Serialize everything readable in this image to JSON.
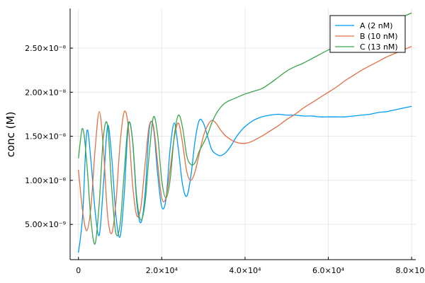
{
  "chart_data": {
    "type": "line",
    "title": "",
    "xlabel": "",
    "ylabel": "conc (M)",
    "xlim": [
      -2000,
      81000
    ],
    "ylim": [
      1e-09,
      2.95e-08
    ],
    "grid": true,
    "legend_position": "top-right",
    "x_ticks": [
      {
        "value": 0,
        "label": "0"
      },
      {
        "value": 20000,
        "label": "2.0×10⁴"
      },
      {
        "value": 40000,
        "label": "4.0×10⁴"
      },
      {
        "value": 60000,
        "label": "6.0×10⁴"
      },
      {
        "value": 80000,
        "label": "8.0×10⁴"
      }
    ],
    "y_ticks": [
      {
        "value": 5e-09,
        "label": "5.00×10⁻⁹"
      },
      {
        "value": 1e-08,
        "label": "1.00×10⁻⁸"
      },
      {
        "value": 1.5e-08,
        "label": "1.50×10⁻⁸"
      },
      {
        "value": 2e-08,
        "label": "2.00×10⁻⁸"
      },
      {
        "value": 2.5e-08,
        "label": "2.50×10⁻⁸"
      }
    ],
    "series": [
      {
        "name": "A (2 nM)",
        "color": "#009af9",
        "x": [
          0,
          1000,
          2000,
          3000,
          4000,
          5000,
          6000,
          7000,
          8000,
          9000,
          10000,
          11000,
          12000,
          13000,
          14000,
          15000,
          16000,
          17000,
          18000,
          19000,
          20000,
          21000,
          22000,
          23000,
          24000,
          25000,
          26000,
          27000,
          28000,
          29000,
          30000,
          31000,
          32000,
          33000,
          34000,
          35000,
          36000,
          37000,
          38000,
          39000,
          40000,
          42000,
          44000,
          46000,
          48000,
          50000,
          52000,
          54000,
          56000,
          58000,
          60000,
          62000,
          64000,
          66000,
          68000,
          70000,
          72000,
          74000,
          76000,
          78000,
          80000
        ],
        "y": [
          1.8e-09,
          6e-09,
          1.55e-08,
          1.22e-08,
          6.5e-09,
          3.8e-09,
          9.5e-09,
          1.62e-08,
          1.25e-08,
          6e-09,
          3.6e-09,
          8.5e-09,
          1.63e-08,
          1.45e-08,
          7.5e-09,
          5.2e-09,
          8.5e-09,
          1.58e-08,
          1.6e-08,
          1.08e-08,
          7e-09,
          7.8e-09,
          1.35e-08,
          1.65e-08,
          1.35e-08,
          9.5e-09,
          8.2e-09,
          1.05e-08,
          1.45e-08,
          1.68e-08,
          1.65e-08,
          1.5e-08,
          1.35e-08,
          1.3e-08,
          1.28e-08,
          1.3e-08,
          1.35e-08,
          1.42e-08,
          1.5e-08,
          1.56e-08,
          1.61e-08,
          1.68e-08,
          1.72e-08,
          1.74e-08,
          1.75e-08,
          1.74e-08,
          1.74e-08,
          1.73e-08,
          1.73e-08,
          1.72e-08,
          1.72e-08,
          1.72e-08,
          1.72e-08,
          1.73e-08,
          1.74e-08,
          1.75e-08,
          1.77e-08,
          1.78e-08,
          1.8e-08,
          1.82e-08,
          1.84e-08
        ]
      },
      {
        "name": "B (10 nM)",
        "color": "#e26f46",
        "x": [
          0,
          1000,
          2000,
          3000,
          4000,
          5000,
          6000,
          7000,
          8000,
          9000,
          10000,
          11000,
          12000,
          13000,
          14000,
          15000,
          16000,
          17000,
          18000,
          19000,
          20000,
          21000,
          22000,
          23000,
          24000,
          25000,
          26000,
          27000,
          28000,
          29000,
          30000,
          31000,
          32000,
          33000,
          34000,
          35000,
          36000,
          37000,
          38000,
          39000,
          40000,
          41000,
          42000,
          44000,
          46000,
          48000,
          50000,
          52000,
          54000,
          56000,
          58000,
          60000,
          62000,
          64000,
          66000,
          68000,
          70000,
          72000,
          74000,
          76000,
          78000,
          80000
        ],
        "y": [
          1.12e-08,
          6.5e-09,
          4.3e-09,
          7e-09,
          1.35e-08,
          1.78e-08,
          1.35e-08,
          6e-09,
          4e-09,
          7.5e-09,
          1.42e-08,
          1.78e-08,
          1.6e-08,
          9.5e-09,
          6e-09,
          7e-09,
          1.18e-08,
          1.62e-08,
          1.62e-08,
          1.2e-08,
          8e-09,
          8e-09,
          1.12e-08,
          1.48e-08,
          1.65e-08,
          1.42e-08,
          1.1e-08,
          1e-08,
          1.1e-08,
          1.3e-08,
          1.5e-08,
          1.62e-08,
          1.68e-08,
          1.65e-08,
          1.58e-08,
          1.52e-08,
          1.48e-08,
          1.45e-08,
          1.43e-08,
          1.42e-08,
          1.42e-08,
          1.43e-08,
          1.45e-08,
          1.5e-08,
          1.56e-08,
          1.62e-08,
          1.69e-08,
          1.75e-08,
          1.82e-08,
          1.88e-08,
          1.94e-08,
          2e-08,
          2.06e-08,
          2.13e-08,
          2.19e-08,
          2.25e-08,
          2.3e-08,
          2.35e-08,
          2.4e-08,
          2.44e-08,
          2.48e-08,
          2.52e-08
        ]
      },
      {
        "name": "C (13 nM)",
        "color": "#3da44d",
        "x": [
          0,
          1000,
          2000,
          3000,
          4000,
          5000,
          6000,
          7000,
          8000,
          9000,
          10000,
          11000,
          12000,
          13000,
          14000,
          15000,
          16000,
          17000,
          18000,
          19000,
          20000,
          21000,
          22000,
          23000,
          24000,
          25000,
          26000,
          27000,
          28000,
          29000,
          30000,
          31000,
          32000,
          33000,
          34000,
          35000,
          36000,
          37000,
          38000,
          39000,
          40000,
          42000,
          44000,
          46000,
          48000,
          50000,
          52000,
          54000,
          56000,
          58000,
          60000,
          62000,
          64000,
          66000,
          68000,
          70000,
          72000,
          74000,
          76000,
          78000,
          80000
        ],
        "y": [
          1.25e-08,
          1.59e-08,
          1.2e-08,
          5.5e-09,
          2.8e-09,
          7.5e-09,
          1.5e-08,
          1.62e-08,
          9e-09,
          4e-09,
          5e-09,
          1.1e-08,
          1.65e-08,
          1.45e-08,
          8e-09,
          5.5e-09,
          7.5e-09,
          1.3e-08,
          1.72e-08,
          1.52e-08,
          1e-08,
          8e-09,
          1e-08,
          1.5e-08,
          1.74e-08,
          1.6e-08,
          1.28e-08,
          1.18e-08,
          1.2e-08,
          1.33e-08,
          1.42e-08,
          1.52e-08,
          1.65e-08,
          1.75e-08,
          1.82e-08,
          1.87e-08,
          1.9e-08,
          1.92e-08,
          1.94e-08,
          1.96e-08,
          1.98e-08,
          2.01e-08,
          2.04e-08,
          2.1e-08,
          2.17e-08,
          2.24e-08,
          2.29e-08,
          2.33e-08,
          2.38e-08,
          2.43e-08,
          2.48e-08,
          2.52e-08,
          2.57e-08,
          2.62e-08,
          2.67e-08,
          2.71e-08,
          2.75e-08,
          2.79e-08,
          2.83e-08,
          2.86e-08,
          2.9e-08
        ]
      }
    ]
  }
}
